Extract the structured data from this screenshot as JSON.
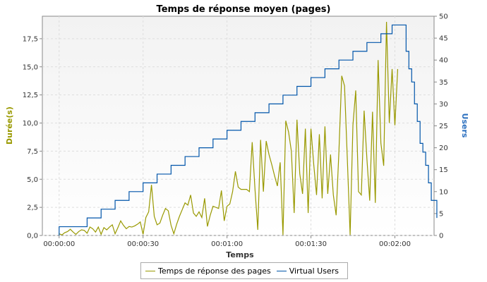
{
  "chart_data": {
    "type": "line",
    "title": "Temps de réponse moyen (pages)",
    "xlabel": "Temps",
    "ylabel_left": "Durée(s)",
    "ylabel_right": "Users",
    "x_unit": "seconds elapsed",
    "x_ticks": [
      "00:00:00",
      "00:00:30",
      "00:01:00",
      "00:01:30",
      "00:02:00"
    ],
    "y_left_ticks": [
      "0,0",
      "2,5",
      "5,0",
      "7,5",
      "10,0",
      "12,5",
      "15,0",
      "17,5"
    ],
    "y_right_ticks": [
      "0",
      "5",
      "10",
      "15",
      "20",
      "25",
      "30",
      "35",
      "40",
      "45",
      "50"
    ],
    "xlim": [
      -6,
      134
    ],
    "ylim_left": [
      0,
      19.5
    ],
    "ylim_right": [
      0,
      50
    ],
    "grid": true,
    "legend_position": "bottom",
    "colors": {
      "response": "#999900",
      "users": "#0055aa",
      "left_axis_title": "#999900",
      "right_axis_title": "#2a6fbf"
    },
    "series": [
      {
        "name": "Temps de réponse des pages",
        "axis": "left",
        "color": "#999900",
        "points": [
          [
            0,
            0.15
          ],
          [
            1,
            0.05
          ],
          [
            2,
            0.25
          ],
          [
            3,
            0.35
          ],
          [
            4,
            0.55
          ],
          [
            5,
            0.3
          ],
          [
            6,
            0.1
          ],
          [
            7,
            0.35
          ],
          [
            8,
            0.5
          ],
          [
            9,
            0.45
          ],
          [
            10,
            0.2
          ],
          [
            11,
            0.75
          ],
          [
            12,
            0.6
          ],
          [
            13,
            0.3
          ],
          [
            14,
            0.75
          ],
          [
            15,
            0.1
          ],
          [
            16,
            0.7
          ],
          [
            17,
            0.5
          ],
          [
            18,
            0.75
          ],
          [
            19,
            0.95
          ],
          [
            20,
            0.15
          ],
          [
            21,
            0.7
          ],
          [
            22,
            1.3
          ],
          [
            23,
            0.9
          ],
          [
            24,
            0.6
          ],
          [
            25,
            0.8
          ],
          [
            26,
            0.75
          ],
          [
            27,
            0.85
          ],
          [
            28,
            1.0
          ],
          [
            29,
            1.2
          ],
          [
            30,
            0.1
          ],
          [
            31,
            1.6
          ],
          [
            32,
            2.1
          ],
          [
            33,
            4.5
          ],
          [
            34,
            1.7
          ],
          [
            35,
            0.95
          ],
          [
            36,
            1.1
          ],
          [
            37,
            1.8
          ],
          [
            38,
            2.4
          ],
          [
            39,
            2.2
          ],
          [
            40,
            0.9
          ],
          [
            41,
            0.15
          ],
          [
            42,
            1.0
          ],
          [
            43,
            1.7
          ],
          [
            44,
            2.3
          ],
          [
            45,
            2.9
          ],
          [
            46,
            2.7
          ],
          [
            47,
            3.6
          ],
          [
            48,
            2.0
          ],
          [
            49,
            1.7
          ],
          [
            50,
            2.1
          ],
          [
            51,
            1.6
          ],
          [
            52,
            3.3
          ],
          [
            53,
            0.8
          ],
          [
            54,
            1.8
          ],
          [
            55,
            2.6
          ],
          [
            56,
            2.5
          ],
          [
            57,
            2.4
          ],
          [
            58,
            4.0
          ],
          [
            59,
            1.3
          ],
          [
            60,
            2.6
          ],
          [
            61,
            2.8
          ],
          [
            62,
            3.9
          ],
          [
            63,
            5.7
          ],
          [
            64,
            4.3
          ],
          [
            65,
            4.1
          ],
          [
            66,
            4.1
          ],
          [
            67,
            4.1
          ],
          [
            68,
            3.9
          ],
          [
            69,
            8.3
          ],
          [
            70,
            4.1
          ],
          [
            71,
            0.5
          ],
          [
            72,
            8.5
          ],
          [
            73,
            3.9
          ],
          [
            74,
            8.4
          ],
          [
            75,
            7.2
          ],
          [
            76,
            6.3
          ],
          [
            77,
            5.3
          ],
          [
            78,
            4.4
          ],
          [
            79,
            6.5
          ],
          [
            80,
            0.05
          ],
          [
            81,
            10.2
          ],
          [
            82,
            9.2
          ],
          [
            83,
            7.5
          ],
          [
            84,
            2.0
          ],
          [
            85,
            10.3
          ],
          [
            86,
            5.5
          ],
          [
            87,
            3.7
          ],
          [
            88,
            9.5
          ],
          [
            89,
            2.0
          ],
          [
            90,
            9.5
          ],
          [
            91,
            6.3
          ],
          [
            92,
            3.6
          ],
          [
            93,
            9.0
          ],
          [
            94,
            3.3
          ],
          [
            95,
            9.7
          ],
          [
            96,
            3.7
          ],
          [
            97,
            7.2
          ],
          [
            98,
            3.6
          ],
          [
            99,
            1.8
          ],
          [
            100,
            7.5
          ],
          [
            101,
            14.2
          ],
          [
            102,
            13.3
          ],
          [
            103,
            6.8
          ],
          [
            104,
            0.05
          ],
          [
            105,
            9.8
          ],
          [
            106,
            12.9
          ],
          [
            107,
            3.9
          ],
          [
            108,
            3.6
          ],
          [
            109,
            11.1
          ],
          [
            110,
            6.8
          ],
          [
            111,
            3.1
          ],
          [
            112,
            11.0
          ],
          [
            113,
            2.9
          ],
          [
            114,
            15.6
          ],
          [
            115,
            8.2
          ],
          [
            116,
            6.2
          ],
          [
            117,
            19.0
          ],
          [
            118,
            10.0
          ],
          [
            119,
            14.8
          ],
          [
            120,
            9.8
          ],
          [
            121,
            14.8
          ]
        ]
      },
      {
        "name": "Virtual Users",
        "axis": "right",
        "color": "#0055aa",
        "steps": [
          [
            0,
            0
          ],
          [
            0,
            2
          ],
          [
            5,
            2
          ],
          [
            10,
            4
          ],
          [
            15,
            6
          ],
          [
            20,
            8
          ],
          [
            25,
            10
          ],
          [
            30,
            12
          ],
          [
            35,
            14
          ],
          [
            40,
            16
          ],
          [
            45,
            18
          ],
          [
            50,
            20
          ],
          [
            55,
            22
          ],
          [
            60,
            24
          ],
          [
            65,
            26
          ],
          [
            70,
            28
          ],
          [
            75,
            30
          ],
          [
            80,
            32
          ],
          [
            85,
            34
          ],
          [
            90,
            36
          ],
          [
            95,
            38
          ],
          [
            100,
            40
          ],
          [
            105,
            42
          ],
          [
            110,
            44
          ],
          [
            115,
            46
          ],
          [
            119,
            48
          ],
          [
            124,
            48
          ],
          [
            124,
            42
          ],
          [
            125,
            38
          ],
          [
            126,
            35
          ],
          [
            127,
            30
          ],
          [
            128,
            26
          ],
          [
            129,
            21
          ],
          [
            130,
            19
          ],
          [
            131,
            16
          ],
          [
            132,
            12
          ],
          [
            133,
            8
          ],
          [
            135,
            4
          ]
        ]
      }
    ]
  },
  "legend": {
    "items": [
      {
        "label": "Temps de réponse des pages",
        "color": "#999900"
      },
      {
        "label": "Virtual Users",
        "color": "#0055aa"
      }
    ]
  }
}
